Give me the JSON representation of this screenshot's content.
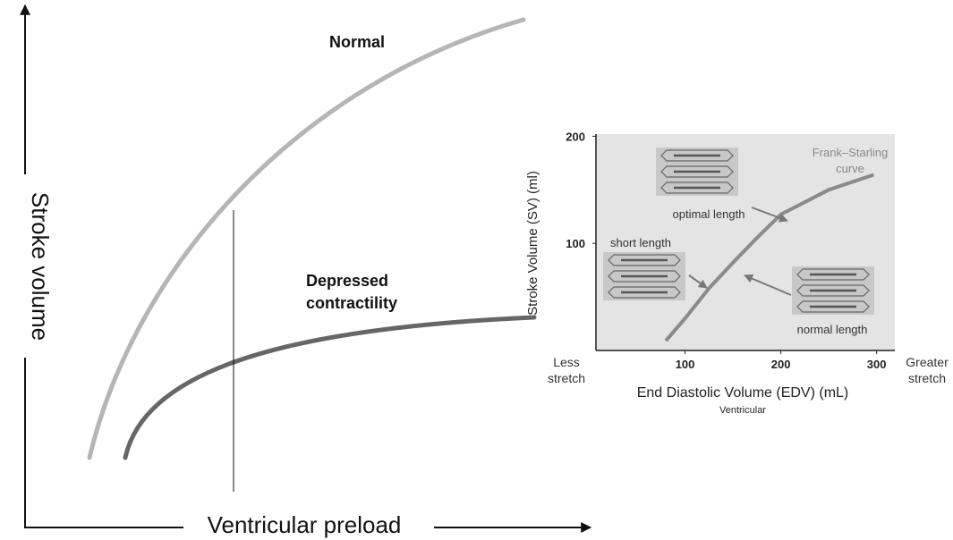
{
  "left_panel": {
    "x_label": "Ventricular preload",
    "y_label": "Stroke volume",
    "curves": [
      {
        "label_lines": [
          "Normal"
        ]
      },
      {
        "label_lines": [
          "Depressed",
          "contractility"
        ]
      }
    ]
  },
  "inset": {
    "type": "line",
    "x_label": "End Diastolic Volume (EDV) (mL)",
    "x_sublabel": "Ventricular",
    "y_label": "Stroke Volume (SV) (ml)",
    "xlim": [
      7,
      319
    ],
    "ylim": [
      0,
      202
    ],
    "xticks": [
      100,
      200,
      300
    ],
    "yticks": [
      100,
      200
    ],
    "left_note": [
      "Less",
      "stretch"
    ],
    "right_note": [
      "Greater",
      "stretch"
    ],
    "curve_label": [
      "Frank–Starling",
      "curve"
    ],
    "x": [
      80,
      100,
      125,
      150,
      175,
      200,
      250,
      297
    ],
    "y": [
      9,
      30,
      58,
      82,
      105,
      127,
      150,
      164
    ],
    "color": "#8a8a8a",
    "annotations": [
      "optimal length",
      "short length",
      "normal length"
    ]
  }
}
